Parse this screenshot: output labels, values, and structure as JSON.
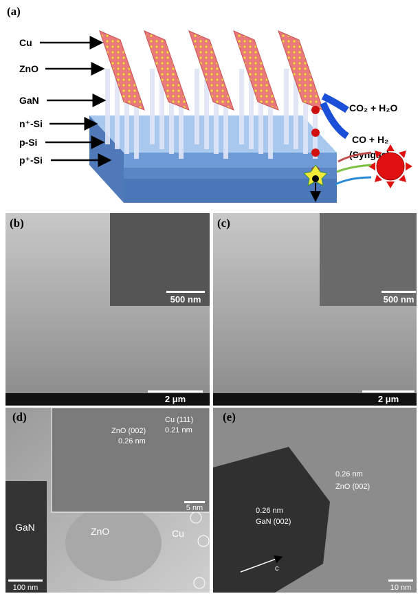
{
  "panel_a": {
    "label": "(a)",
    "layers": [
      "Cu",
      "ZnO",
      "GaN",
      "n⁺-Si",
      "p-Si",
      "p⁺-Si"
    ],
    "reactants": "CO₂ + H₂O",
    "products": "CO + H₂",
    "products_note": "(Syngas)"
  },
  "panel_b": {
    "label": "(b)",
    "inset_scale": "500 nm",
    "scale": "2 μm"
  },
  "panel_c": {
    "label": "(c)",
    "inset_scale": "500 nm",
    "scale": "2 μm"
  },
  "panel_d": {
    "label": "(d)",
    "inset_labels": [
      "ZnO (002)",
      "0.26 nm",
      "Cu (111)",
      "0.21 nm"
    ],
    "inset_scale": "5 nm",
    "labels": [
      "GaN",
      "ZnO",
      "Cu"
    ],
    "scale": "100 nm"
  },
  "panel_e": {
    "label": "(e)",
    "labels": [
      "0.26 nm",
      "ZnO (002)",
      "0.26 nm",
      "GaN (002)",
      "c"
    ],
    "scale": "10 nm"
  }
}
